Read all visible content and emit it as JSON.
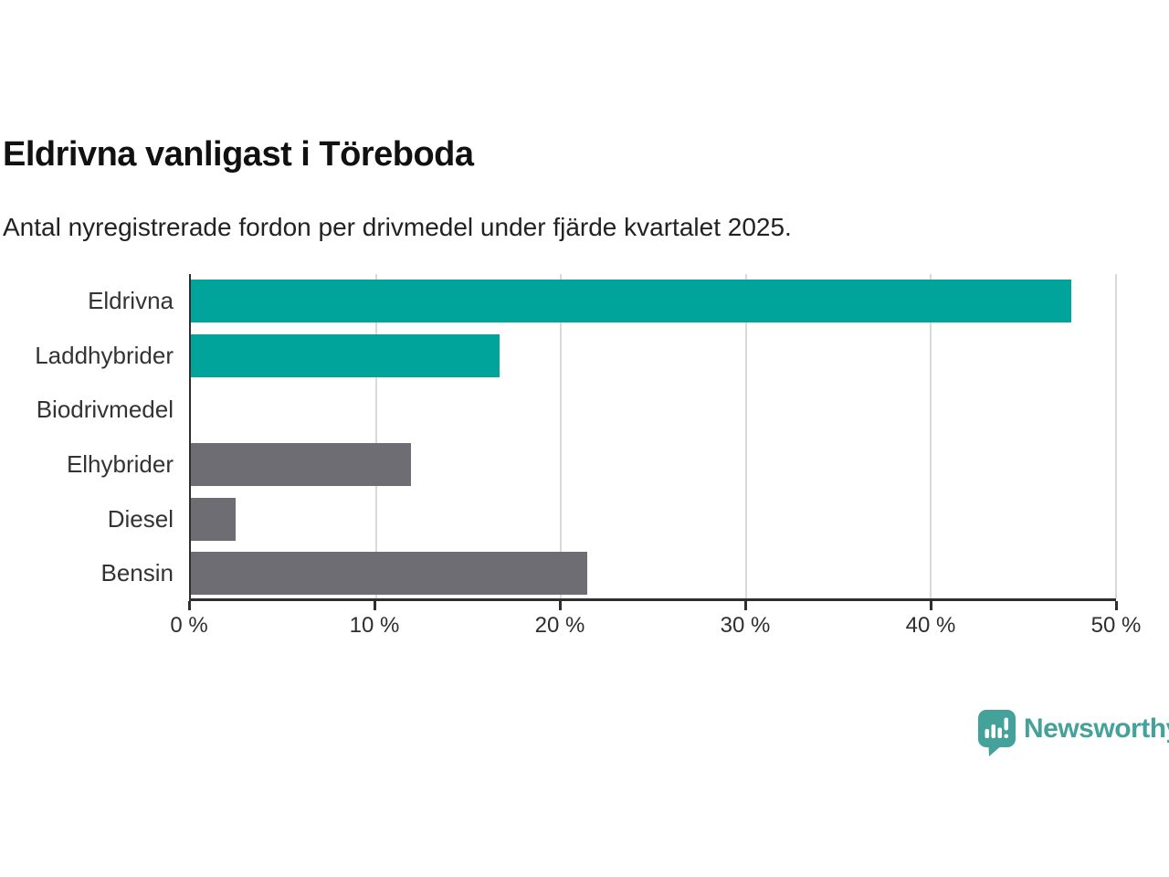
{
  "title": "Eldrivna vanligast i Töreboda",
  "subtitle": "Antal nyregistrerade fordon per drivmedel under fjärde kvartalet 2025.",
  "chart_data": {
    "type": "bar",
    "orientation": "horizontal",
    "title": "Eldrivna vanligast i Töreboda",
    "subtitle": "Antal nyregistrerade fordon per drivmedel under fjärde kvartalet 2025.",
    "categories": [
      "Eldrivna",
      "Laddhybrider",
      "Biodrivmedel",
      "Elhybrider",
      "Diesel",
      "Bensin"
    ],
    "values": [
      47.6,
      16.7,
      0,
      11.9,
      2.4,
      21.4
    ],
    "unit": "%",
    "bar_colors": [
      "#00a49a",
      "#00a49a",
      "#00a49a",
      "#6d6d73",
      "#6d6d73",
      "#6d6d73"
    ],
    "xlabel": "",
    "ylabel": "",
    "xlim": [
      0,
      50
    ],
    "x_ticks": [
      "0 %",
      "10 %",
      "20 %",
      "30 %",
      "40 %",
      "50 %"
    ],
    "x_tick_values": [
      0,
      10,
      20,
      30,
      40,
      50
    ],
    "grid": "vertical",
    "legend": "none"
  },
  "colors": {
    "accent_teal": "#00a49a",
    "neutral_gray": "#6d6d73",
    "gridline": "#d9d9d9",
    "axis": "#2e2e2e",
    "title_text": "#111111",
    "label_text": "#333333",
    "background": "#ffffff",
    "logo_teal": "#45a29b"
  },
  "branding": {
    "logo_text": "Newsworthy",
    "logo_icon": "bar-chart-speech-bubble-icon"
  }
}
